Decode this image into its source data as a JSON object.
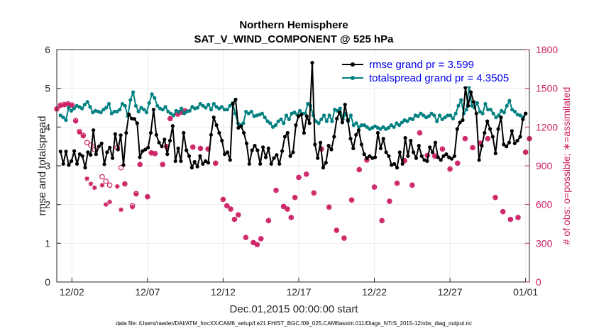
{
  "chart_data": {
    "type": "line",
    "title": "Northern Hemisphere",
    "subtitle": "SAT_V_WIND_COMPONENT @ 525 hPa",
    "xlabel": "Dec.01,2015 00:00:00 start",
    "ylabel": "rmse and totalspread",
    "ylabel_right": "# of obs: o=possible; ∗=assimilated",
    "xlim": [
      0,
      31.25
    ],
    "ylim": [
      0,
      6
    ],
    "ylim_right": [
      0,
      1800
    ],
    "x_tick_positions": [
      1,
      6,
      11,
      16,
      21,
      26,
      31
    ],
    "x_tick_labels": [
      "12/02",
      "12/07",
      "12/12",
      "12/17",
      "12/22",
      "12/27",
      "01/01"
    ],
    "y_ticks": [
      0,
      1,
      2,
      3,
      4,
      5,
      6
    ],
    "y_ticks_right": [
      0,
      300,
      600,
      900,
      1200,
      1500,
      1800
    ],
    "footnote": "data file: /Users/raeder/DAI/ATM_forcXX/CAM6_setup/f.e21.FHIST_BGC.f09_025.CAM6assim.011/Diags_NTrS_2015-12/obs_diag_output.nc",
    "series": [
      {
        "name": "rmse grand pr = 3.599",
        "color": "#000000",
        "marker": "asterisk",
        "values": [
          3.37,
          3.05,
          3.37,
          3.02,
          3.12,
          3.38,
          3.05,
          3.3,
          3.25,
          2.95,
          3.35,
          3.28,
          3.92,
          3.3,
          3.5,
          3.58,
          3.04,
          3.35,
          3.47,
          3.2,
          3.82,
          3.42,
          3.79,
          3.02,
          3.85,
          4.33,
          4.22,
          4.21,
          4.1,
          3.22,
          3.38,
          3.42,
          3.47,
          3.85,
          4.45,
          3.8,
          3.6,
          3.5,
          3.68,
          3.3,
          3.65,
          4.03,
          3.12,
          3.45,
          3.12,
          3.85,
          3.4,
          3.25,
          2.95,
          3.1,
          2.98,
          3.25,
          3.05,
          3.12,
          3.08,
          3.8,
          4.25,
          4.05,
          3.85,
          3.65,
          3.3,
          3.35,
          3.15,
          4.6,
          4.71,
          3.98,
          4.02,
          3.85,
          3.58,
          3.05,
          3.4,
          3.52,
          3.4,
          3.05,
          3.48,
          3.22,
          3.45,
          3.05,
          3.2,
          3.28,
          3.05,
          3.38,
          3.75,
          3.85,
          3.25,
          3.35,
          4.05,
          4.28,
          4.32,
          3.85,
          4.28,
          4.1,
          5.66,
          3.55,
          3.2,
          3.6,
          2.95,
          3.08,
          3.52,
          3.42,
          3.75,
          4.22,
          4.38,
          4.12,
          4.58,
          4.18,
          3.7,
          3.45,
          3.8,
          3.92,
          3.55,
          3.3,
          3.2,
          3.25,
          3.2,
          3.22,
          3.85,
          3.45,
          3.7,
          3.35,
          3.25,
          3.02,
          3.05,
          2.95,
          3.35,
          3.05,
          3.72,
          3.25,
          3.65,
          3.35,
          3.2,
          3.52,
          3.25,
          3.15,
          3.12,
          3.48,
          3.35,
          3.6,
          3.22,
          3.15,
          3.25,
          3.3,
          3.22,
          3.18,
          3.25,
          3.95,
          4.12,
          4.18,
          5.02,
          4.55,
          4.9,
          4.65,
          4.35,
          3.15,
          3.52,
          3.85,
          4.15,
          3.95,
          3.75,
          3.32,
          3.95,
          4.25,
          3.55,
          3.5,
          3.6,
          3.9,
          3.58,
          3.65,
          3.75,
          4.2,
          4.35
        ]
      },
      {
        "name": "totalspread grand pr = 4.3505",
        "color": "#008080",
        "marker": "circle",
        "values": [
          4.3,
          4.25,
          4.18,
          4.5,
          4.42,
          4.48,
          4.55,
          4.52,
          4.48,
          4.58,
          4.65,
          4.52,
          4.38,
          4.42,
          4.4,
          4.38,
          4.45,
          4.5,
          4.6,
          4.35,
          4.4,
          4.4,
          4.45,
          4.6,
          4.55,
          4.28,
          4.7,
          4.9,
          4.55,
          4.4,
          4.5,
          4.45,
          4.38,
          4.62,
          4.85,
          4.75,
          4.55,
          4.48,
          4.45,
          4.52,
          4.4,
          4.35,
          4.3,
          4.42,
          4.4,
          4.48,
          4.35,
          4.4,
          4.42,
          4.52,
          4.48,
          4.5,
          4.6,
          4.55,
          4.5,
          4.58,
          4.45,
          4.6,
          4.52,
          4.48,
          4.52,
          4.45,
          4.45,
          4.55,
          4.62,
          4.35,
          4.1,
          4.05,
          4.1,
          4.4,
          4.35,
          4.4,
          4.28,
          4.3,
          4.32,
          4.35,
          4.25,
          4.15,
          4.1,
          4.0,
          4.05,
          4.15,
          4.2,
          4.1,
          4.3,
          4.2,
          4.35,
          4.38,
          4.32,
          4.42,
          4.35,
          4.35,
          4.6,
          4.55,
          4.3,
          4.15,
          4.1,
          4.2,
          4.3,
          4.15,
          4.3,
          4.15,
          4.45,
          4.42,
          4.48,
          4.2,
          4.35,
          4.15,
          4.3,
          4.05,
          4.1,
          4.0,
          4.05,
          4.05,
          4.0,
          3.95,
          3.98,
          4.02,
          3.98,
          3.95,
          4.0,
          3.95,
          3.98,
          4.05,
          4.0,
          4.1,
          4.05,
          4.12,
          4.18,
          4.15,
          4.22,
          4.2,
          4.3,
          4.28,
          4.35,
          4.3,
          4.25,
          4.28,
          4.35,
          4.3,
          4.15,
          4.3,
          4.2,
          4.25,
          4.3,
          4.3,
          4.22,
          4.35,
          4.55,
          4.7,
          4.35,
          4.45,
          5.05,
          4.55,
          4.5,
          4.62,
          4.4,
          4.35,
          4.6,
          4.45,
          4.45,
          4.35,
          4.25,
          4.3,
          4.42,
          4.38,
          4.55,
          4.68,
          4.45,
          4.4,
          4.32,
          4.3,
          4.25,
          4.35
        ]
      }
    ],
    "obs_counts": {
      "name": "# of obs",
      "color": "#cc1f63",
      "x": [
        0,
        0.25,
        0.5,
        0.75,
        1,
        1.25,
        1.5,
        1.75,
        2,
        2.25,
        2.5,
        3,
        3.25,
        3.5,
        4,
        4.25,
        4.5,
        5,
        5.25,
        5.5,
        6,
        6.25,
        6.5,
        7,
        7.25,
        7.5,
        8,
        8.25,
        8.5,
        9,
        9.5,
        10,
        10.5,
        11,
        11.25,
        11.5,
        11.75,
        12,
        12.5,
        13,
        13.25,
        13.5,
        14,
        14.5,
        15,
        15.25,
        15.5,
        15.75,
        16,
        16.5,
        17,
        17.5,
        18,
        18.5,
        19,
        19.5,
        20,
        20.5,
        21,
        21.5,
        22,
        22.5,
        23,
        23.5,
        24,
        24.5,
        25,
        25.5,
        26,
        26.5,
        27,
        27.5,
        28,
        28.5,
        29,
        29.5,
        30,
        30.5,
        31,
        31.25
      ],
      "possible": [
        1340,
        1370,
        1375,
        1380,
        1370,
        1250,
        1165,
        1135,
        1080,
        1060,
        1025,
        815,
        780,
        750,
        1040,
        885,
        760,
        590,
        685,
        910,
        660,
        1000,
        995,
        910,
        1050,
        1265,
        1300,
        1315,
        1325,
        1045,
        1035,
        1030,
        920,
        640,
        590,
        565,
        485,
        520,
        345,
        305,
        290,
        335,
        475,
        710,
        585,
        565,
        500,
        655,
        810,
        835,
        690,
        1030,
        580,
        400,
        340,
        635,
        870,
        945,
        735,
        475,
        625,
        765,
        940,
        750,
        1155,
        980,
        975,
        1030,
        875,
        920,
        1110,
        1040,
        1075,
        1110,
        655,
        545,
        485,
        500,
        1005,
        1110,
        0
      ],
      "assimilated": [
        1340,
        1365,
        1372,
        1378,
        1368,
        1245,
        1160,
        1130,
        800,
        760,
        730,
        750,
        600,
        620,
        740,
        560,
        760,
        580,
        680,
        910,
        660,
        1000,
        995,
        910,
        1050,
        1265,
        1300,
        1315,
        1325,
        1045,
        1035,
        1030,
        920,
        640,
        590,
        565,
        485,
        520,
        345,
        305,
        290,
        335,
        475,
        710,
        585,
        565,
        500,
        655,
        810,
        835,
        690,
        1030,
        580,
        400,
        340,
        635,
        870,
        945,
        735,
        475,
        625,
        765,
        940,
        750,
        1155,
        980,
        975,
        1030,
        875,
        920,
        1110,
        1040,
        1075,
        1110,
        655,
        545,
        485,
        500,
        1005,
        1110,
        0
      ]
    }
  }
}
